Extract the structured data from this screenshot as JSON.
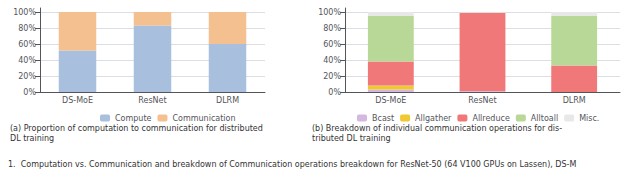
{
  "chart_data": [
    {
      "type": "bar",
      "stacked": true,
      "title": "(a) Proportion of computation to communication for distributed\nDL training",
      "categories": [
        "DS-MoE",
        "ResNet",
        "DLRM"
      ],
      "series": [
        {
          "name": "Compute",
          "color": "#a8c0de",
          "values": [
            0.52,
            0.83,
            0.6
          ]
        },
        {
          "name": "Communication",
          "color": "#f5c090",
          "values": [
            0.48,
            0.17,
            0.4
          ]
        }
      ],
      "ylim": [
        0,
        1.05
      ],
      "yticks": [
        {
          "value": 0.0,
          "label": "0%"
        },
        {
          "value": 0.2,
          "label": "20%"
        },
        {
          "value": 0.4,
          "label": "40%"
        },
        {
          "value": 0.6,
          "label": "60%"
        },
        {
          "value": 0.8,
          "label": "80%"
        },
        {
          "value": 1.0,
          "label": "100%"
        }
      ],
      "grid": true,
      "legend": "bottom"
    },
    {
      "type": "bar",
      "stacked": true,
      "title": "(b) Breakdown of individual communication operations for dis-\ntributed DL training",
      "categories": [
        "DS-MoE",
        "ResNet",
        "DLRM"
      ],
      "series": [
        {
          "name": "Bcast",
          "color": "#d4b8e0",
          "values": [
            0.03,
            0.01,
            0.0
          ]
        },
        {
          "name": "Allgather",
          "color": "#f0c832",
          "values": [
            0.05,
            0.0,
            0.0
          ]
        },
        {
          "name": "Allreduce",
          "color": "#f07878",
          "values": [
            0.3,
            0.98,
            0.33
          ]
        },
        {
          "name": "Alltoall",
          "color": "#b8d898",
          "values": [
            0.57,
            0.0,
            0.62
          ]
        },
        {
          "name": "Misc.",
          "color": "#e8e8e8",
          "values": [
            0.05,
            0.01,
            0.05
          ]
        }
      ],
      "ylim": [
        0,
        1.05
      ],
      "yticks": [
        {
          "value": 0.0,
          "label": "0%"
        },
        {
          "value": 0.2,
          "label": "20%"
        },
        {
          "value": 0.4,
          "label": "40%"
        },
        {
          "value": 0.6,
          "label": "60%"
        },
        {
          "value": 0.8,
          "label": "80%"
        },
        {
          "value": 1.0,
          "label": "100%"
        }
      ],
      "grid": true,
      "legend": "bottom"
    }
  ],
  "caption": "1.  Computation vs. Communication and breakdown of Communication operations breakdown for ResNet-50 (64 V100 GPUs on Lassen), DS-M"
}
